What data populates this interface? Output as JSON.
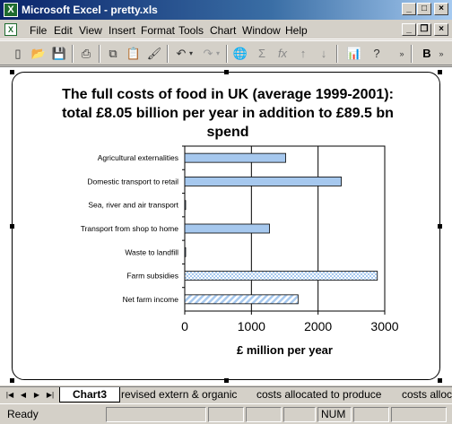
{
  "window": {
    "title": "Microsoft Excel - pretty.xls",
    "app_icon": "X"
  },
  "menu": [
    "File",
    "Edit",
    "View",
    "Insert",
    "Format",
    "Tools",
    "Chart",
    "Window",
    "Help"
  ],
  "toolbar": {
    "bold_label": "B"
  },
  "chart_data": {
    "type": "bar",
    "orientation": "horizontal",
    "title": "The full costs of food in UK (average 1999-2001): total £8.05 billion per year in addition to £89.5 bn spend",
    "title_lines": [
      "The full costs of food in UK (average 1999-2001):",
      "total £8.05 billion per year in addition to £89.5 bn",
      "spend"
    ],
    "xlabel": "£ million per year",
    "ylabel": "",
    "xlim": [
      0,
      3000
    ],
    "xticks": [
      "0",
      "1000",
      "2000",
      "3000"
    ],
    "grid": true,
    "categories": [
      "Agricultural externalities",
      "Domestic transport to retail",
      "Sea, river and air transport",
      "Transport from shop to home",
      "Waste to landfill",
      "Farm subsidies",
      "Net farm income"
    ],
    "values": [
      1514,
      2348,
      5,
      1271,
      3,
      2889,
      1700
    ],
    "fills": [
      "solid",
      "solid",
      "solid",
      "solid",
      "solid",
      "checker",
      "diagonal"
    ],
    "bar_color": "#a6c8ee"
  },
  "sheet_tabs": [
    "Chart3",
    "revised extern & organic",
    "costs allocated to produce",
    "costs alloc"
  ],
  "status": {
    "ready": "Ready",
    "num": "NUM"
  }
}
